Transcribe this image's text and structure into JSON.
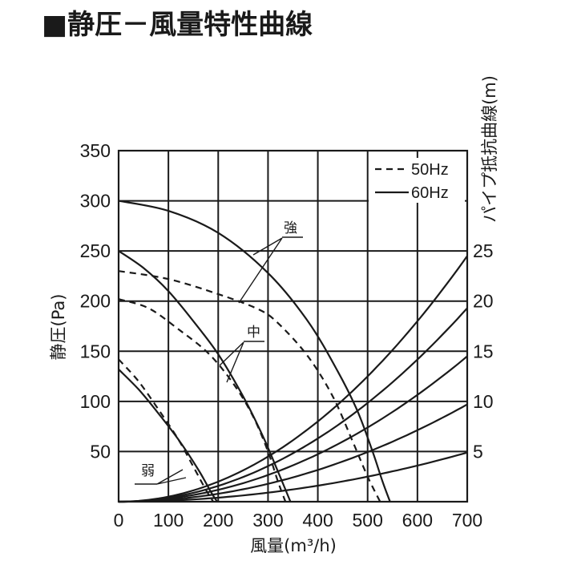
{
  "title": "■静圧－風量特性曲線",
  "chart_data": {
    "type": "line",
    "xlabel": "風量(m³/h)",
    "ylabel": "静圧(Pa)",
    "y2label": "パイプ抵抗曲線(m)",
    "xlim": [
      0,
      700
    ],
    "ylim": [
      0,
      350
    ],
    "x_ticks": [
      "0",
      "100",
      "200",
      "300",
      "400",
      "500",
      "600",
      "700"
    ],
    "y_ticks": [
      "50",
      "100",
      "150",
      "200",
      "250",
      "300",
      "350"
    ],
    "y2_ticks": [
      "5",
      "10",
      "15",
      "20",
      "25"
    ],
    "grid": true,
    "legend_position": "top-right",
    "legend": [
      {
        "label": "50Hz",
        "style": "dashed"
      },
      {
        "label": "60Hz",
        "style": "solid"
      }
    ],
    "annotations": [
      "強",
      "中",
      "弱"
    ],
    "series": [
      {
        "setting": "強",
        "freq": "60Hz",
        "style": "solid",
        "points": [
          [
            0,
            300
          ],
          [
            100,
            290
          ],
          [
            200,
            268
          ],
          [
            300,
            228
          ],
          [
            380,
            180
          ],
          [
            440,
            130
          ],
          [
            480,
            90
          ],
          [
            510,
            50
          ],
          [
            530,
            20
          ],
          [
            545,
            0
          ]
        ]
      },
      {
        "setting": "強",
        "freq": "50Hz",
        "style": "dashed",
        "points": [
          [
            0,
            230
          ],
          [
            100,
            222
          ],
          [
            200,
            207
          ],
          [
            280,
            192
          ],
          [
            320,
            178
          ],
          [
            380,
            145
          ],
          [
            430,
            105
          ],
          [
            470,
            60
          ],
          [
            500,
            25
          ],
          [
            525,
            0
          ]
        ]
      },
      {
        "setting": "中",
        "freq": "60Hz",
        "style": "solid",
        "points": [
          [
            0,
            250
          ],
          [
            50,
            233
          ],
          [
            100,
            210
          ],
          [
            150,
            180
          ],
          [
            200,
            147
          ],
          [
            250,
            105
          ],
          [
            290,
            65
          ],
          [
            320,
            30
          ],
          [
            345,
            0
          ]
        ]
      },
      {
        "setting": "中",
        "freq": "50Hz",
        "style": "dashed",
        "points": [
          [
            0,
            202
          ],
          [
            60,
            193
          ],
          [
            120,
            172
          ],
          [
            180,
            148
          ],
          [
            230,
            118
          ],
          [
            270,
            85
          ],
          [
            300,
            50
          ],
          [
            320,
            20
          ],
          [
            335,
            0
          ]
        ]
      },
      {
        "setting": "弱",
        "freq": "60Hz",
        "style": "solid",
        "points": [
          [
            0,
            132
          ],
          [
            40,
            112
          ],
          [
            80,
            88
          ],
          [
            120,
            62
          ],
          [
            160,
            32
          ],
          [
            185,
            10
          ],
          [
            198,
            0
          ]
        ]
      },
      {
        "setting": "弱",
        "freq": "50Hz",
        "style": "dashed",
        "points": [
          [
            0,
            142
          ],
          [
            40,
            120
          ],
          [
            80,
            92
          ],
          [
            120,
            62
          ],
          [
            150,
            35
          ],
          [
            175,
            12
          ],
          [
            190,
            0
          ]
        ]
      }
    ],
    "pipe_resistance_curves": [
      {
        "y_at_700": 245
      },
      {
        "y_at_700": 193
      },
      {
        "y_at_700": 145
      },
      {
        "y_at_700": 97
      },
      {
        "y_at_700": 49
      }
    ]
  }
}
